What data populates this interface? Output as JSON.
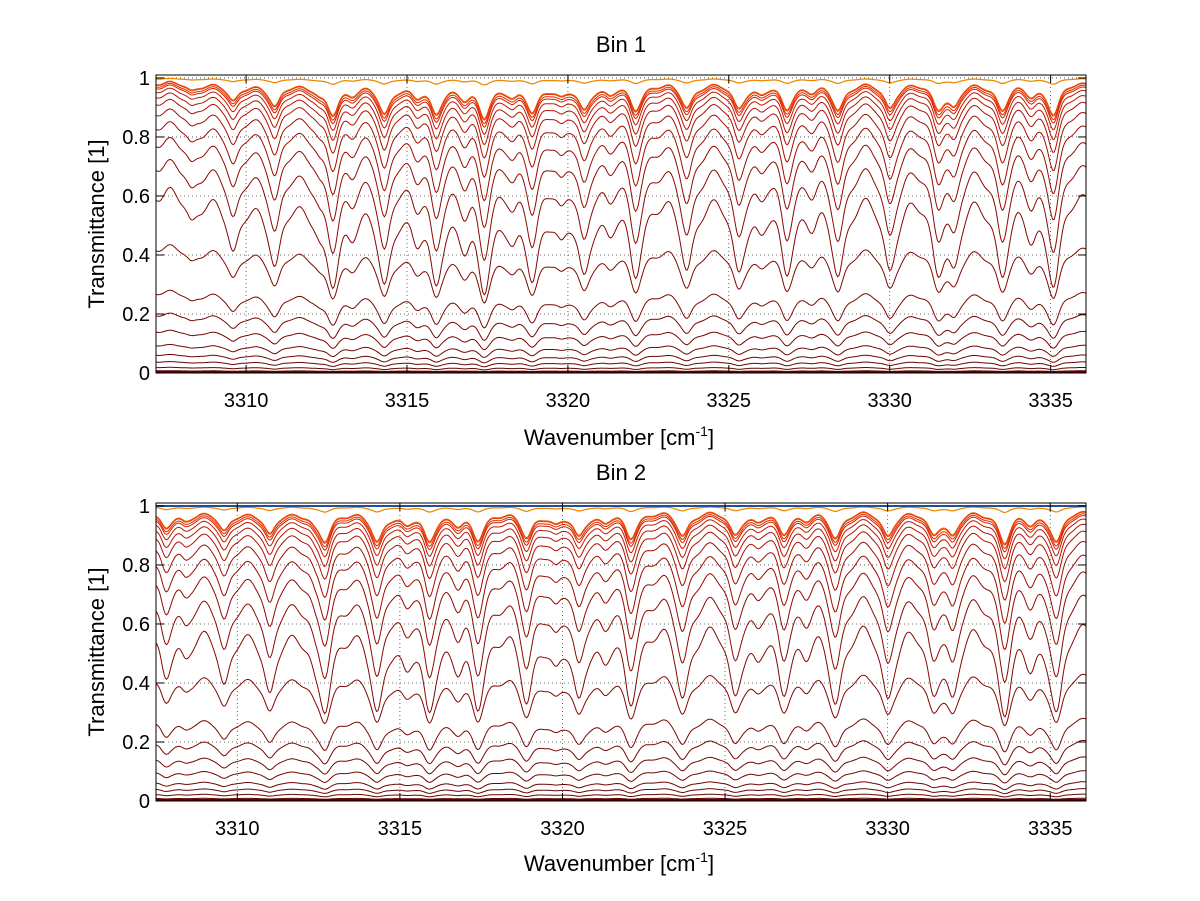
{
  "chart_data": [
    {
      "type": "line",
      "title": "Bin 1",
      "xlabel": "Wavenumber [cm",
      "xlabel_sup": "-1",
      "xlabel_suffix": "]",
      "ylabel": "Transmittance [1]",
      "xlim": [
        3307.2,
        3336.1
      ],
      "ylim": [
        0,
        1.01
      ],
      "xticks": [
        3310,
        3315,
        3320,
        3325,
        3330,
        3335
      ],
      "yticks": [
        0,
        0.2,
        0.4,
        0.6,
        0.8,
        1
      ],
      "xtick_labels": [
        "3310",
        "3315",
        "3320",
        "3325",
        "3330",
        "3335"
      ],
      "ytick_labels": [
        "0",
        "0.2",
        "0.4",
        "0.6",
        "0.8",
        "1"
      ],
      "grid": true,
      "grid_style": "dotted",
      "absorption_lines": [
        {
          "x": 3308.3,
          "depth": 0.25
        },
        {
          "x": 3309.6,
          "depth": 0.55
        },
        {
          "x": 3310.9,
          "depth": 0.7
        },
        {
          "x": 3312.3,
          "depth": 0.25
        },
        {
          "x": 3312.7,
          "depth": 0.85
        },
        {
          "x": 3313.3,
          "depth": 0.2
        },
        {
          "x": 3314.3,
          "depth": 0.9
        },
        {
          "x": 3315.3,
          "depth": 0.3
        },
        {
          "x": 3315.9,
          "depth": 0.85
        },
        {
          "x": 3316.8,
          "depth": 0.35
        },
        {
          "x": 3317.4,
          "depth": 0.95
        },
        {
          "x": 3318.3,
          "depth": 0.3
        },
        {
          "x": 3318.9,
          "depth": 0.8
        },
        {
          "x": 3319.8,
          "depth": 0.3
        },
        {
          "x": 3320.5,
          "depth": 0.75
        },
        {
          "x": 3321.3,
          "depth": 0.25
        },
        {
          "x": 3322.1,
          "depth": 0.75
        },
        {
          "x": 3323.7,
          "depth": 0.7
        },
        {
          "x": 3325.3,
          "depth": 0.7
        },
        {
          "x": 3326.0,
          "depth": 0.25
        },
        {
          "x": 3326.8,
          "depth": 0.7
        },
        {
          "x": 3327.6,
          "depth": 0.2
        },
        {
          "x": 3328.4,
          "depth": 0.75
        },
        {
          "x": 3330.0,
          "depth": 0.7
        },
        {
          "x": 3331.5,
          "depth": 0.65
        },
        {
          "x": 3332.0,
          "depth": 0.6
        },
        {
          "x": 3333.5,
          "depth": 0.75
        },
        {
          "x": 3334.4,
          "depth": 0.3
        },
        {
          "x": 3335.1,
          "depth": 0.9
        }
      ],
      "series_baseline_transmittance": [
        1.0,
        0.999,
        0.997,
        0.995,
        0.99,
        0.985,
        0.975,
        0.96,
        0.94,
        0.91,
        0.87,
        0.82,
        0.75,
        0.66,
        0.45,
        0.29,
        0.21,
        0.15,
        0.1,
        0.065,
        0.04,
        0.02,
        0.008,
        0.002
      ],
      "series_colors": [
        "#f2a900",
        "#f08000",
        "#ee5a00",
        "#e83a00",
        "#e02a00",
        "#d42000",
        "#c41800",
        "#b81200",
        "#ac1000",
        "#a00e00",
        "#980c00",
        "#900a00",
        "#8a0a00",
        "#840800",
        "#800800",
        "#7c0800",
        "#780600",
        "#740600",
        "#700600",
        "#6c0400",
        "#680400",
        "#640400",
        "#600400",
        "#5c0200"
      ]
    },
    {
      "type": "line",
      "title": "Bin 2",
      "xlabel": "Wavenumber [cm",
      "xlabel_sup": "-1",
      "xlabel_suffix": "]",
      "ylabel": "Transmittance [1]",
      "xlim": [
        3307.5,
        3336.1
      ],
      "ylim": [
        0,
        1.01
      ],
      "xticks": [
        3310,
        3315,
        3320,
        3325,
        3330,
        3335
      ],
      "yticks": [
        0,
        0.2,
        0.4,
        0.6,
        0.8,
        1
      ],
      "xtick_labels": [
        "3310",
        "3315",
        "3320",
        "3325",
        "3330",
        "3335"
      ],
      "ytick_labels": [
        "0",
        "0.2",
        "0.4",
        "0.6",
        "0.8",
        "1"
      ],
      "grid": true,
      "grid_style": "dotted",
      "reference_line": {
        "y": 1.0,
        "color": "#1f4e9e"
      },
      "absorption_lines": [
        {
          "x": 3307.8,
          "depth": 0.5
        },
        {
          "x": 3308.4,
          "depth": 0.25
        },
        {
          "x": 3309.6,
          "depth": 0.6
        },
        {
          "x": 3311.0,
          "depth": 0.7
        },
        {
          "x": 3312.4,
          "depth": 0.25
        },
        {
          "x": 3312.7,
          "depth": 0.8
        },
        {
          "x": 3314.3,
          "depth": 0.9
        },
        {
          "x": 3315.2,
          "depth": 0.3
        },
        {
          "x": 3315.9,
          "depth": 0.85
        },
        {
          "x": 3316.8,
          "depth": 0.3
        },
        {
          "x": 3317.4,
          "depth": 0.8
        },
        {
          "x": 3318.9,
          "depth": 0.75
        },
        {
          "x": 3319.8,
          "depth": 0.3
        },
        {
          "x": 3320.5,
          "depth": 0.7
        },
        {
          "x": 3321.3,
          "depth": 0.25
        },
        {
          "x": 3322.1,
          "depth": 0.75
        },
        {
          "x": 3323.7,
          "depth": 0.7
        },
        {
          "x": 3325.3,
          "depth": 0.65
        },
        {
          "x": 3326.0,
          "depth": 0.25
        },
        {
          "x": 3326.8,
          "depth": 0.6
        },
        {
          "x": 3327.5,
          "depth": 0.2
        },
        {
          "x": 3328.4,
          "depth": 0.75
        },
        {
          "x": 3330.0,
          "depth": 0.7
        },
        {
          "x": 3331.4,
          "depth": 0.6
        },
        {
          "x": 3332.0,
          "depth": 0.65
        },
        {
          "x": 3333.6,
          "depth": 0.9
        },
        {
          "x": 3334.4,
          "depth": 0.3
        },
        {
          "x": 3335.2,
          "depth": 0.9
        }
      ],
      "series_baseline_transmittance": [
        1.0,
        0.999,
        0.997,
        0.995,
        0.99,
        0.985,
        0.975,
        0.96,
        0.94,
        0.91,
        0.87,
        0.82,
        0.75,
        0.66,
        0.46,
        0.3,
        0.22,
        0.16,
        0.11,
        0.07,
        0.045,
        0.025,
        0.01,
        0.003
      ],
      "series_colors": [
        "#f2a900",
        "#f08000",
        "#ee5a00",
        "#e83a00",
        "#e02a00",
        "#d42000",
        "#c41800",
        "#b81200",
        "#ac1000",
        "#a00e00",
        "#980c00",
        "#900a00",
        "#8a0a00",
        "#840800",
        "#800800",
        "#7c0800",
        "#780600",
        "#740600",
        "#700600",
        "#6c0400",
        "#680400",
        "#640400",
        "#600400",
        "#5c0200"
      ]
    }
  ]
}
